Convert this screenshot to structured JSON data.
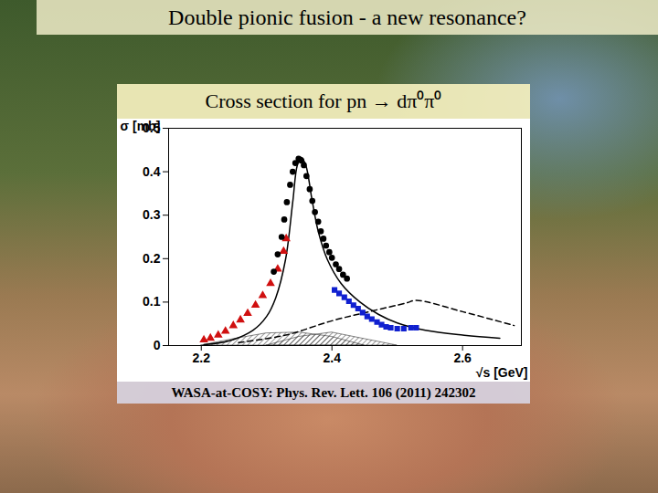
{
  "chart_data": {
    "type": "scatter",
    "title": "Double pionic fusion - a new resonance?",
    "subtitle": "Cross section for pn → dπ⁰π⁰",
    "caption": "WASA-at-COSY: Phys. Rev. Lett. 106 (2011) 242302",
    "x_label": "√s [GeV]",
    "y_label": "σ [mb]",
    "xlim": [
      2.15,
      2.69
    ],
    "ylim": [
      0,
      0.5
    ],
    "xticks": [
      2.2,
      2.4,
      2.6
    ],
    "yticks": [
      0,
      0.1,
      0.2,
      0.3,
      0.4,
      0.5
    ],
    "grid": false,
    "series": [
      {
        "type": "area",
        "color": "#333333",
        "x": [
          2.2,
          2.25,
          2.3,
          2.35,
          2.4,
          2.45
        ],
        "values": [
          0,
          0.015,
          0.028,
          0.03,
          0.02,
          0
        ]
      },
      {
        "type": "area",
        "color": "#333333",
        "x": [
          2.3,
          2.35,
          2.4,
          2.45,
          2.5
        ],
        "values": [
          0,
          0.02,
          0.03,
          0.015,
          0
        ]
      },
      {
        "type": "line",
        "color": "#000000",
        "line_style": "dashed",
        "x": [
          2.257,
          2.329,
          2.4,
          2.457,
          2.514,
          2.529,
          2.6,
          2.679
        ],
        "values": [
          0.007,
          0.024,
          0.057,
          0.078,
          0.098,
          0.104,
          0.078,
          0.046
        ]
      },
      {
        "type": "line",
        "color": "#000000",
        "line_style": "solid",
        "x": [
          2.204,
          2.243,
          2.279,
          2.3,
          2.314,
          2.329,
          2.34,
          2.347,
          2.353,
          2.36,
          2.369,
          2.379,
          2.393,
          2.414,
          2.443,
          2.471,
          2.5,
          2.543,
          2.6,
          2.657
        ],
        "values": [
          0.002,
          0.011,
          0.035,
          0.067,
          0.11,
          0.198,
          0.33,
          0.415,
          0.433,
          0.415,
          0.34,
          0.263,
          0.198,
          0.143,
          0.1,
          0.072,
          0.052,
          0.035,
          0.024,
          0.017
        ]
      },
      {
        "type": "scatter",
        "color": "#d01010",
        "marker": "triangle",
        "x": [
          2.204,
          2.214,
          2.226,
          2.237,
          2.249,
          2.26,
          2.271,
          2.283,
          2.294,
          2.306,
          2.317,
          2.326,
          2.33
        ],
        "values": [
          0.013,
          0.017,
          0.024,
          0.033,
          0.046,
          0.059,
          0.074,
          0.093,
          0.115,
          0.143,
          0.176,
          0.217,
          0.246
        ]
      },
      {
        "type": "scatter",
        "color": "#000000",
        "marker": "circle",
        "x": [
          2.311,
          2.317,
          2.323,
          2.327,
          2.331,
          2.336,
          2.34,
          2.344,
          2.349,
          2.353,
          2.357,
          2.361,
          2.366,
          2.37,
          2.374,
          2.379,
          2.383,
          2.387,
          2.391,
          2.396,
          2.4,
          2.406,
          2.411,
          2.417,
          2.423
        ],
        "values": [
          0.17,
          0.21,
          0.25,
          0.29,
          0.33,
          0.37,
          0.4,
          0.42,
          0.43,
          0.426,
          0.415,
          0.39,
          0.36,
          0.333,
          0.307,
          0.285,
          0.263,
          0.246,
          0.23,
          0.215,
          0.202,
          0.187,
          0.176,
          0.163,
          0.154
        ]
      },
      {
        "type": "scatter",
        "color": "#1020d0",
        "marker": "square",
        "x": [
          2.404,
          2.411,
          2.419,
          2.426,
          2.433,
          2.44,
          2.447,
          2.454,
          2.461,
          2.469,
          2.476,
          2.483,
          2.49,
          2.5,
          2.51,
          2.521,
          2.529
        ],
        "values": [
          0.128,
          0.12,
          0.111,
          0.102,
          0.093,
          0.085,
          0.076,
          0.067,
          0.061,
          0.054,
          0.048,
          0.043,
          0.041,
          0.039,
          0.039,
          0.041,
          0.041
        ]
      }
    ]
  }
}
